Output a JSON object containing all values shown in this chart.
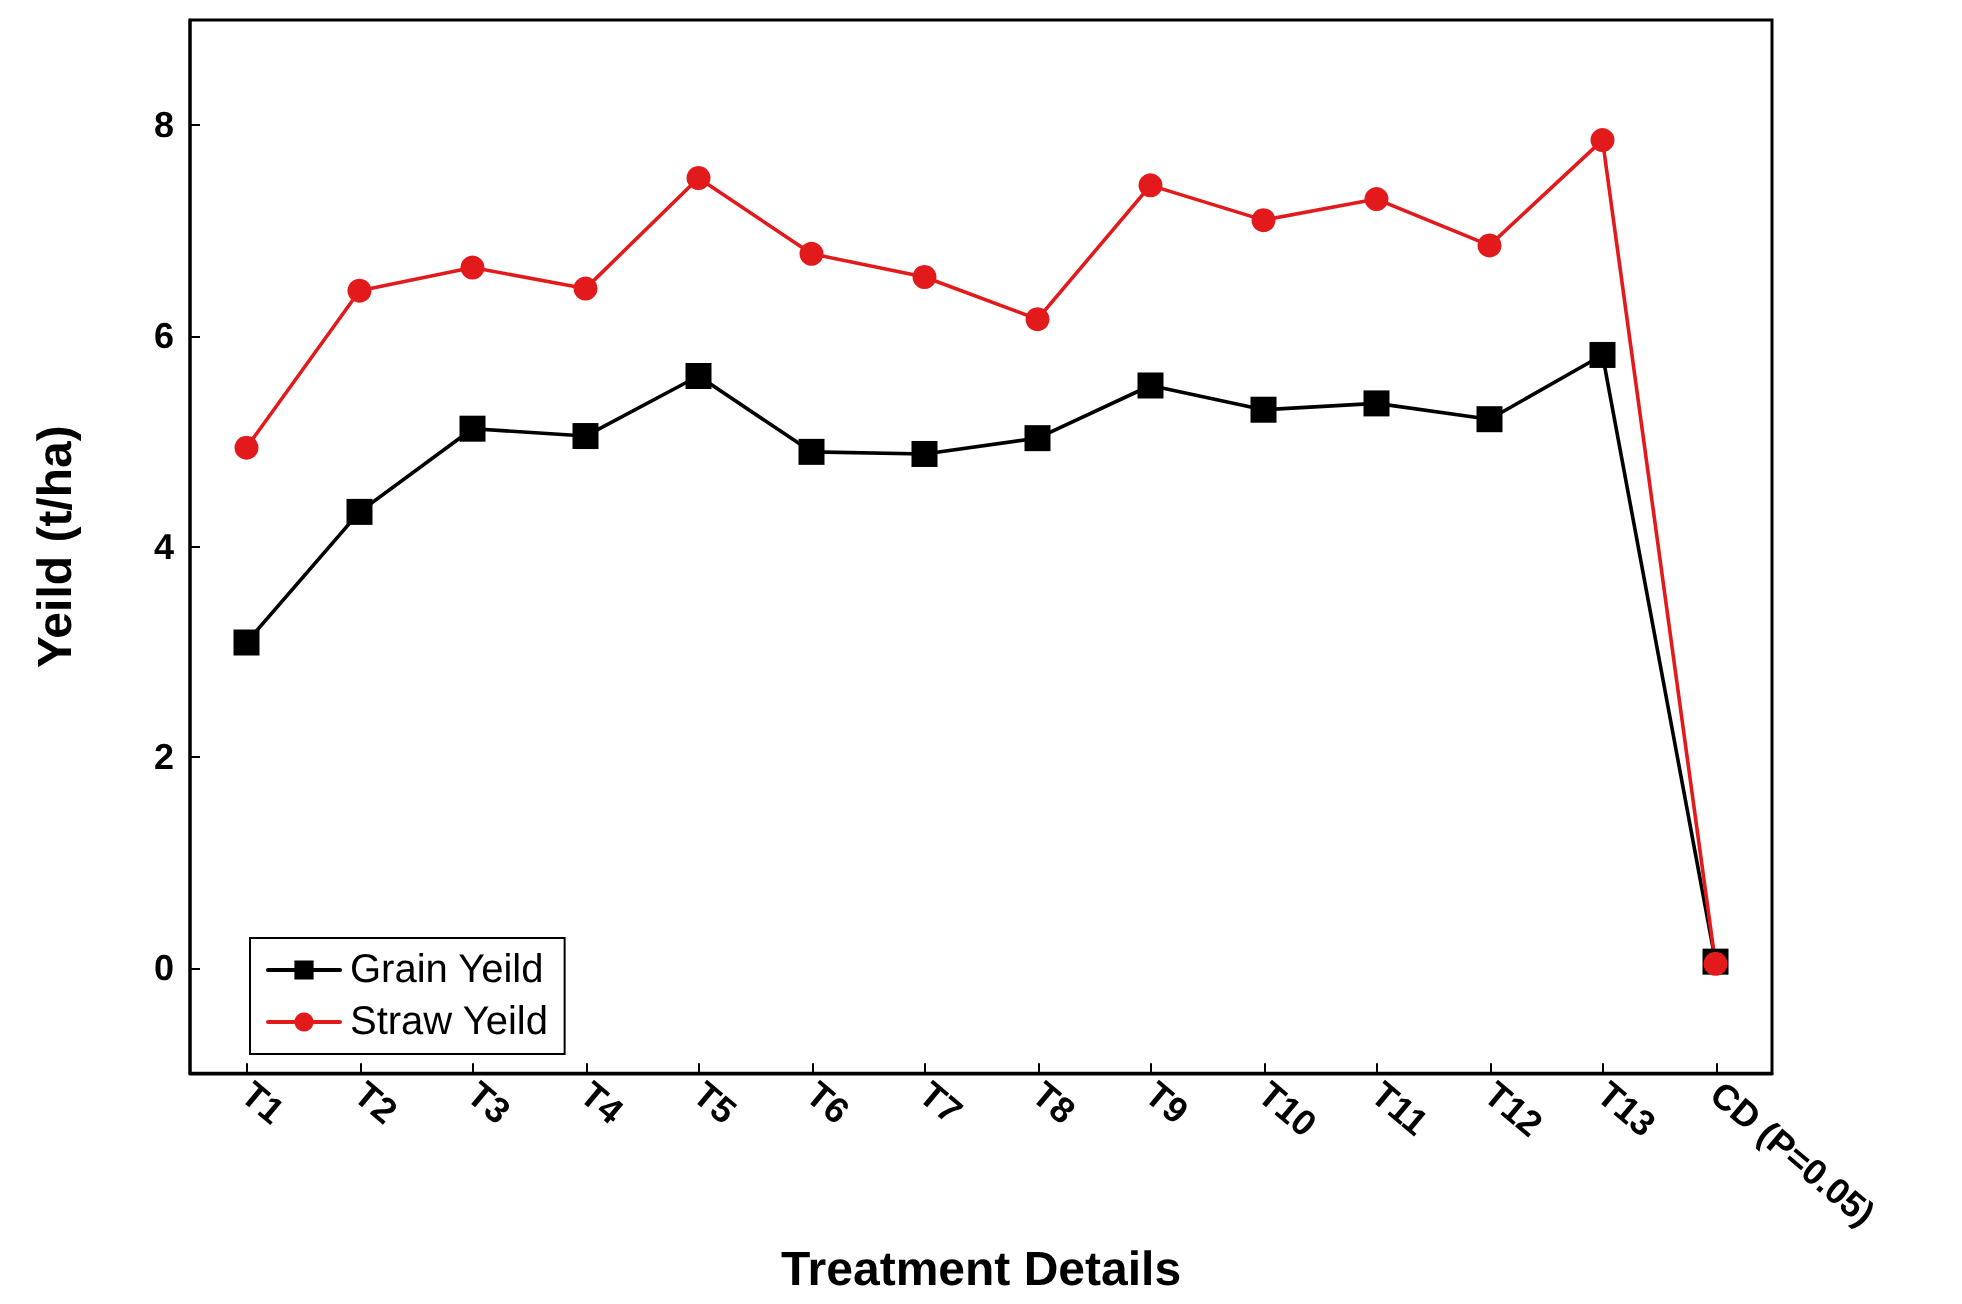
{
  "chart_data": {
    "type": "line",
    "xlabel": "Treatment Details",
    "ylabel": "Yeild (t/ha)",
    "categories": [
      "T1",
      "T2",
      "T3",
      "T4",
      "T5",
      "T6",
      "T7",
      "T8",
      "T9",
      "T10",
      "T11",
      "T12",
      "T13",
      "CD (P=0.05)"
    ],
    "series": [
      {
        "name": "Grain Yeild",
        "color": "#000000",
        "marker": "square",
        "values": [
          3.09,
          4.33,
          5.12,
          5.05,
          5.62,
          4.9,
          4.88,
          5.03,
          5.53,
          5.3,
          5.36,
          5.21,
          5.82,
          0.06
        ]
      },
      {
        "name": "Straw Yeild",
        "color": "#e31a1c",
        "marker": "circle",
        "values": [
          4.94,
          6.43,
          6.65,
          6.45,
          7.5,
          6.78,
          6.56,
          6.16,
          7.43,
          7.1,
          7.3,
          6.86,
          7.86,
          0.04
        ]
      }
    ],
    "ylim": [
      -1,
      9
    ],
    "yticks": [
      0,
      2,
      4,
      6,
      8
    ],
    "grid": false,
    "legend": "bottom left",
    "line_style": "solid"
  }
}
